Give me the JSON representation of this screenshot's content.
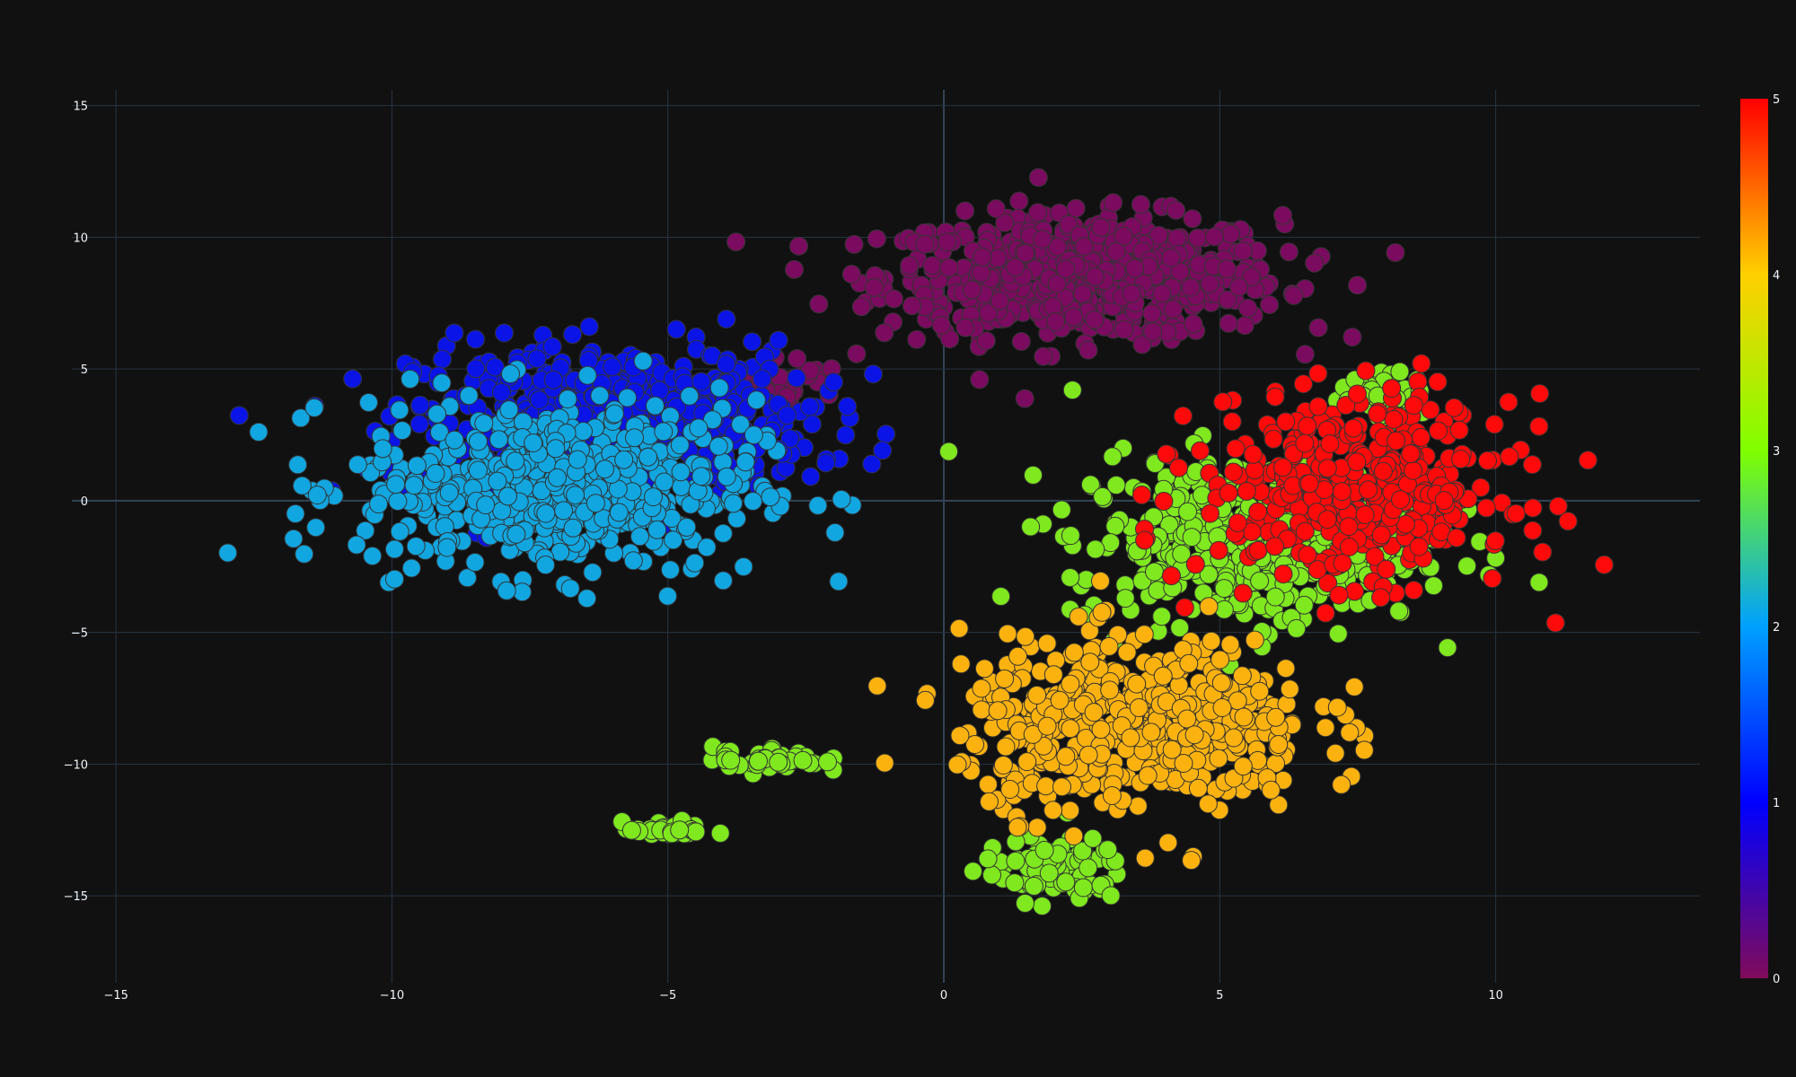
{
  "chart_data": {
    "type": "scatter",
    "title": "",
    "xlabel": "",
    "ylabel": "",
    "xlim": [
      -15.8,
      13.7
    ],
    "ylim": [
      -18.3,
      15.6
    ],
    "x_ticks": [
      -15,
      -10,
      -5,
      0,
      5,
      10
    ],
    "y_ticks": [
      -15,
      -10,
      -5,
      0,
      5,
      10,
      15
    ],
    "x_tick_labels": [
      "−15",
      "−10",
      "−5",
      "0",
      "5",
      "10"
    ],
    "y_tick_labels": [
      "−15",
      "−10",
      "−5",
      "0",
      "5",
      "10",
      "15"
    ],
    "grid": true,
    "colorbar": {
      "min": 0,
      "max": 5,
      "ticks": [
        0,
        1,
        2,
        3,
        4,
        5
      ],
      "tick_labels": [
        "0",
        "1",
        "2",
        "3",
        "4",
        "5"
      ],
      "colorscale": [
        "#7f0b5a",
        "#0000ff",
        "#00a0ff",
        "#80ff00",
        "#ffd000",
        "#ff0000"
      ]
    },
    "clusters": [
      {
        "value": 0,
        "color": "#7b0b5f",
        "center": [
          2.5,
          8.5
        ],
        "spread": [
          3.6,
          2.3
        ],
        "count": 650
      },
      {
        "value": 0,
        "color": "#7b0b5f",
        "center": [
          -3.0,
          4.5
        ],
        "spread": [
          1.2,
          1.0
        ],
        "count": 50
      },
      {
        "value": 1,
        "color": "#0a14e6",
        "center": [
          -6.0,
          3.0
        ],
        "spread": [
          3.6,
          3.0
        ],
        "count": 550
      },
      {
        "value": 2,
        "color": "#11a6e0",
        "center": [
          -7.0,
          0.5
        ],
        "spread": [
          3.6,
          3.3
        ],
        "count": 550
      },
      {
        "value": 3,
        "color": "#7fe81e",
        "center": [
          5.5,
          -1.5
        ],
        "spread": [
          3.2,
          3.2
        ],
        "count": 420
      },
      {
        "value": 3,
        "color": "#7fe81e",
        "center": [
          2.0,
          -14.0
        ],
        "spread": [
          1.3,
          1.2
        ],
        "count": 90
      },
      {
        "value": 3,
        "color": "#7fe81e",
        "center": [
          -5.0,
          -12.5
        ],
        "spread": [
          0.8,
          0.3
        ],
        "count": 35
      },
      {
        "value": 3,
        "color": "#7fe81e",
        "center": [
          -3.2,
          -9.8
        ],
        "spread": [
          1.0,
          0.5
        ],
        "count": 45
      },
      {
        "value": 3,
        "color": "#7fe81e",
        "center": [
          8.0,
          4.0
        ],
        "spread": [
          0.8,
          0.8
        ],
        "count": 50
      },
      {
        "value": 4,
        "color": "#fbb20f",
        "center": [
          3.5,
          -8.5
        ],
        "spread": [
          3.2,
          3.3
        ],
        "count": 520
      },
      {
        "value": 5,
        "color": "#ff0a0a",
        "center": [
          7.5,
          0.5
        ],
        "spread": [
          2.8,
          3.4
        ],
        "count": 430
      }
    ]
  }
}
